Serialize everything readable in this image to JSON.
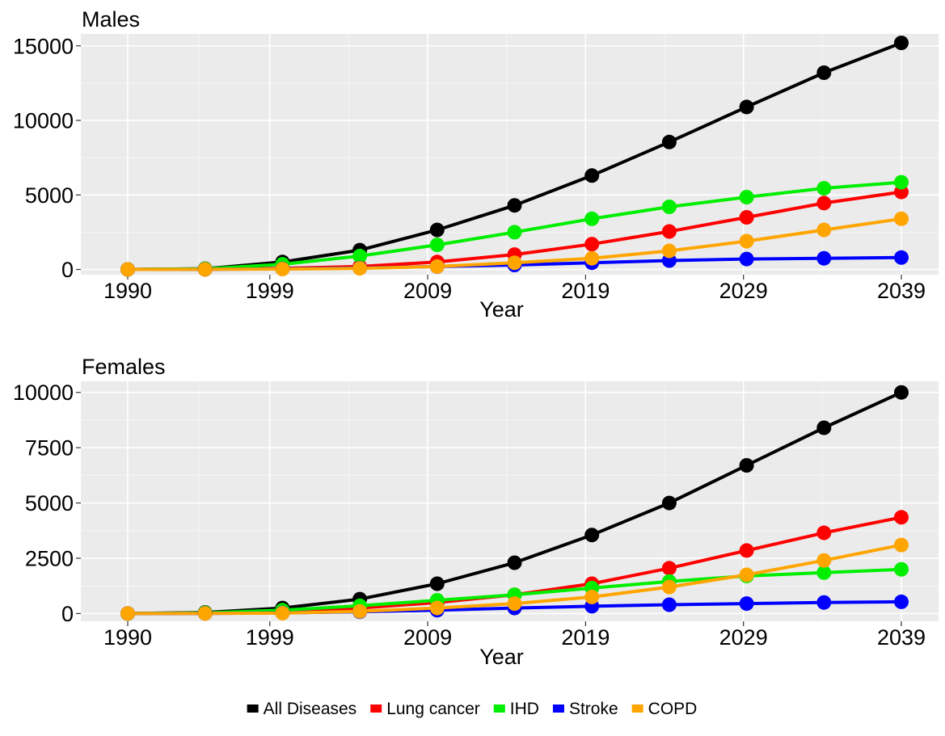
{
  "chart_data": [
    {
      "type": "line",
      "title": "Males",
      "xlabel": "Year",
      "ylabel": "",
      "x_tick_labels": [
        "1990",
        "1999",
        "2009",
        "2019",
        "2029",
        "2039"
      ],
      "x": [
        1990,
        1994.9,
        1999.8,
        2004.7,
        2009.6,
        2014.5,
        2019.4,
        2024.3,
        2029.2,
        2034.1,
        2039
      ],
      "ylim": [
        -350,
        15800
      ],
      "y_ticks": [
        0,
        5000,
        10000,
        15000
      ],
      "y_tick_labels": [
        "0",
        "5000",
        "10000",
        "15000"
      ],
      "grid": true,
      "series": [
        {
          "name": "All Diseases",
          "color": "#000000",
          "values": [
            0,
            50,
            500,
            1300,
            2650,
            4300,
            6300,
            8550,
            10900,
            13200,
            15200
          ]
        },
        {
          "name": "Lung cancer",
          "color": "#ff0000",
          "values": [
            0,
            10,
            80,
            200,
            500,
            1000,
            1700,
            2550,
            3500,
            4450,
            5200
          ]
        },
        {
          "name": "IHD",
          "color": "#00ee00",
          "values": [
            0,
            40,
            350,
            900,
            1650,
            2500,
            3400,
            4200,
            4850,
            5450,
            5850
          ]
        },
        {
          "name": "Stroke",
          "color": "#0000ff",
          "values": [
            0,
            5,
            40,
            100,
            200,
            300,
            450,
            600,
            700,
            750,
            800
          ]
        },
        {
          "name": "COPD",
          "color": "#ffa500",
          "values": [
            0,
            5,
            30,
            80,
            200,
            450,
            750,
            1250,
            1900,
            2650,
            3400
          ]
        }
      ]
    },
    {
      "type": "line",
      "title": "Females",
      "xlabel": "Year",
      "ylabel": "",
      "x_tick_labels": [
        "1990",
        "1999",
        "2009",
        "2019",
        "2029",
        "2039"
      ],
      "x": [
        1990,
        1994.9,
        1999.8,
        2004.7,
        2009.6,
        2014.5,
        2019.4,
        2024.3,
        2029.2,
        2034.1,
        2039
      ],
      "ylim": [
        -350,
        10500
      ],
      "y_ticks": [
        0,
        2500,
        5000,
        7500,
        10000
      ],
      "y_tick_labels": [
        "0",
        "2500",
        "5000",
        "7500",
        "10000"
      ],
      "grid": true,
      "series": [
        {
          "name": "All Diseases",
          "color": "#000000",
          "values": [
            0,
            50,
            250,
            650,
            1350,
            2300,
            3550,
            5000,
            6700,
            8400,
            10000
          ]
        },
        {
          "name": "Lung cancer",
          "color": "#ff0000",
          "values": [
            0,
            10,
            80,
            250,
            500,
            850,
            1350,
            2050,
            2850,
            3650,
            4350
          ]
        },
        {
          "name": "IHD",
          "color": "#00ee00",
          "values": [
            0,
            30,
            150,
            350,
            600,
            850,
            1150,
            1450,
            1700,
            1850,
            2000
          ]
        },
        {
          "name": "Stroke",
          "color": "#0000ff",
          "values": [
            0,
            5,
            30,
            80,
            150,
            250,
            330,
            400,
            450,
            500,
            530
          ]
        },
        {
          "name": "COPD",
          "color": "#ffa500",
          "values": [
            0,
            5,
            20,
            100,
            250,
            450,
            750,
            1200,
            1750,
            2400,
            3100
          ]
        }
      ]
    }
  ],
  "legend": {
    "position": "bottom",
    "items": [
      {
        "label": "All Diseases",
        "color": "#000000"
      },
      {
        "label": "Lung cancer",
        "color": "#ff0000"
      },
      {
        "label": "IHD",
        "color": "#00ee00"
      },
      {
        "label": "Stroke",
        "color": "#0000ff"
      },
      {
        "label": "COPD",
        "color": "#ffa500"
      }
    ]
  }
}
